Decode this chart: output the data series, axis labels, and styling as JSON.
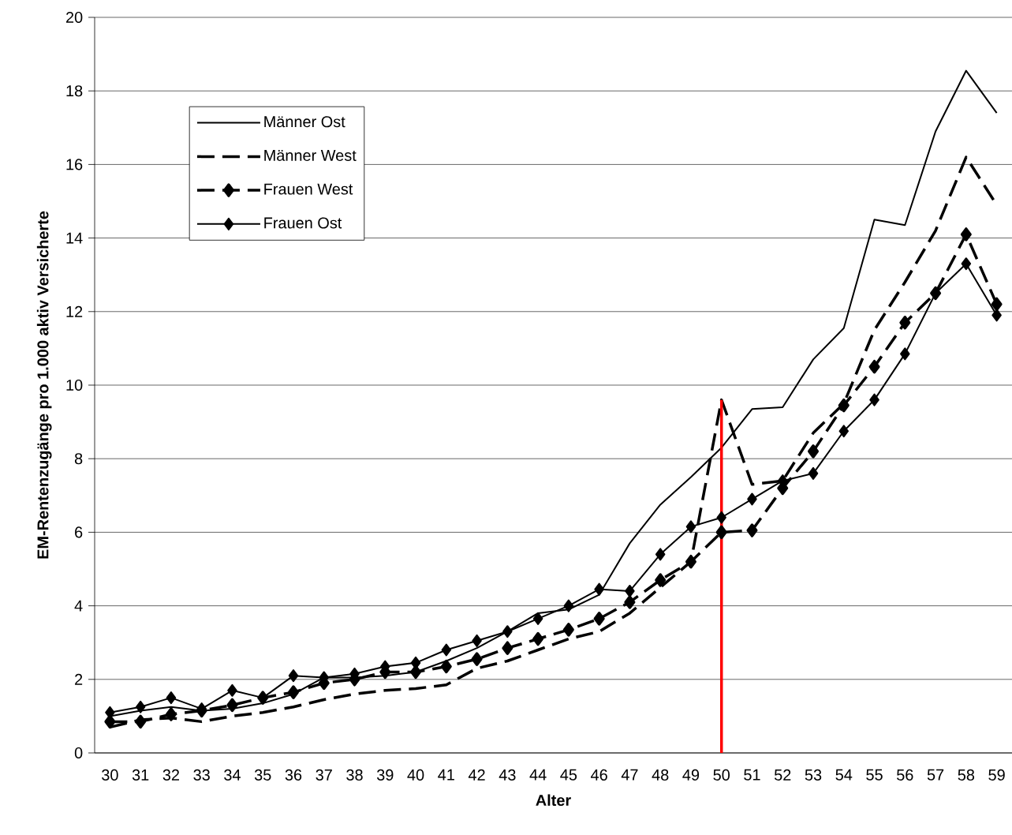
{
  "chart_data": {
    "type": "line",
    "xlabel": "Alter",
    "ylabel": "EM-Rentenzugänge pro 1.000 aktiv Versicherte",
    "categories": [
      "30",
      "31",
      "32",
      "33",
      "34",
      "35",
      "36",
      "37",
      "38",
      "39",
      "40",
      "41",
      "42",
      "43",
      "44",
      "45",
      "46",
      "47",
      "48",
      "49",
      "50",
      "51",
      "52",
      "53",
      "54",
      "55",
      "56",
      "57",
      "58",
      "59"
    ],
    "ylim": [
      0,
      20
    ],
    "yticks": [
      0,
      2,
      4,
      6,
      8,
      10,
      12,
      14,
      16,
      18,
      20
    ],
    "grid": "y",
    "legend": "top left",
    "series": [
      {
        "name": "Männer Ost",
        "color": "#000000",
        "marker": "none",
        "line_style": "solid",
        "values": [
          1.0,
          1.15,
          1.25,
          1.15,
          1.2,
          1.35,
          1.6,
          2.05,
          2.05,
          2.1,
          2.2,
          2.5,
          2.85,
          3.3,
          3.8,
          3.9,
          4.3,
          5.7,
          6.75,
          7.5,
          8.3,
          9.35,
          9.4,
          10.7,
          11.55,
          14.5,
          14.35,
          16.9,
          18.55,
          17.4
        ]
      },
      {
        "name": "Männer West",
        "color": "#000000",
        "marker": "none",
        "line_style": "dashed",
        "values": [
          0.7,
          0.9,
          0.95,
          0.85,
          1.0,
          1.1,
          1.25,
          1.45,
          1.6,
          1.7,
          1.75,
          1.85,
          2.3,
          2.5,
          2.8,
          3.1,
          3.3,
          3.8,
          4.5,
          5.2,
          9.6,
          7.3,
          7.4,
          8.7,
          9.5,
          11.5,
          12.8,
          14.2,
          16.2,
          14.9
        ]
      },
      {
        "name": "Frauen West",
        "color": "#000000",
        "marker": "diamond",
        "line_style": "dashed",
        "values": [
          0.85,
          0.85,
          1.05,
          1.15,
          1.3,
          1.5,
          1.65,
          1.9,
          2.0,
          2.2,
          2.2,
          2.35,
          2.55,
          2.85,
          3.1,
          3.35,
          3.65,
          4.1,
          4.7,
          5.2,
          6.0,
          6.05,
          7.2,
          8.2,
          9.45,
          10.5,
          11.7,
          12.5,
          14.1,
          12.2
        ]
      },
      {
        "name": "Frauen Ost",
        "color": "#000000",
        "marker": "diamond",
        "line_style": "solid",
        "values": [
          1.1,
          1.25,
          1.5,
          1.2,
          1.7,
          1.5,
          2.1,
          2.05,
          2.15,
          2.35,
          2.45,
          2.8,
          3.05,
          3.3,
          3.65,
          4.0,
          4.45,
          4.4,
          5.4,
          6.15,
          6.4,
          6.9,
          7.4,
          7.6,
          8.75,
          9.6,
          10.85,
          12.5,
          13.3,
          11.9
        ]
      },
      {
        "type": "line",
        "color": "#ff0000",
        "marker": "none",
        "line_style": "solid",
        "x": [
          "50",
          "50"
        ],
        "values": [
          0,
          9.6
        ]
      }
    ]
  }
}
